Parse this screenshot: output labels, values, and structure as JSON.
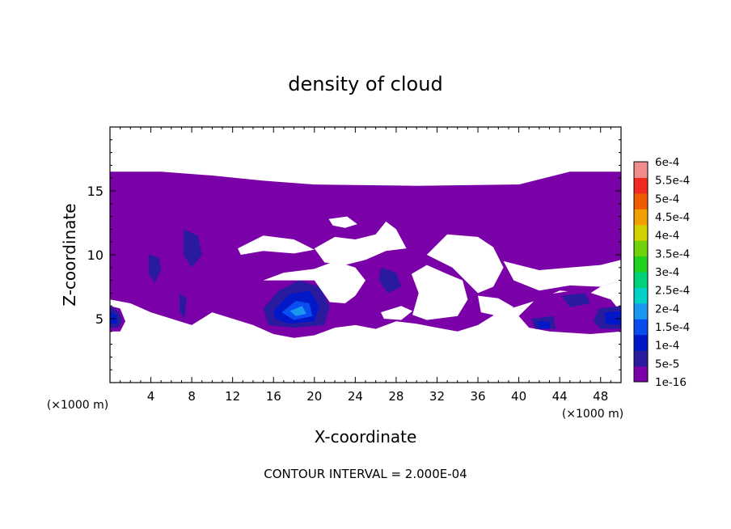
{
  "chart_data": {
    "type": "heatmap",
    "title": "density of cloud",
    "xlabel": "X-coordinate",
    "ylabel": "Z-coordinate",
    "x_unit_left": "(×1000 m)",
    "x_unit_right": "(×1000 m)",
    "xlim": [
      0,
      50
    ],
    "ylim": [
      0,
      20
    ],
    "x_ticks": [
      4,
      8,
      12,
      16,
      20,
      24,
      28,
      32,
      36,
      40,
      44,
      48
    ],
    "y_ticks": [
      5,
      10,
      15
    ],
    "footer": "CONTOUR INTERVAL = 2.000E-04",
    "colorbar": {
      "levels": [
        "1e-16",
        "5e-5",
        "1e-4",
        "1.5e-4",
        "2e-4",
        "2.5e-4",
        "3e-4",
        "3.5e-4",
        "4e-4",
        "4.5e-4",
        "5e-4",
        "5.5e-4",
        "6e-4"
      ],
      "colors": [
        "#7a00a8",
        "#2a1a9e",
        "#0018c8",
        "#0a4cf0",
        "#1898f0",
        "#00d2c8",
        "#00d27a",
        "#1ed21e",
        "#70d20a",
        "#d2d200",
        "#f0a000",
        "#f05a00",
        "#f02a20",
        "#f08c8c"
      ]
    },
    "cloud_base_color": "#7a00a8",
    "regions": [
      {
        "level": 0,
        "points": [
          [
            0,
            16.5
          ],
          [
            5,
            16.5
          ],
          [
            10,
            16.2
          ],
          [
            15,
            15.8
          ],
          [
            20,
            15.5
          ],
          [
            30,
            15.4
          ],
          [
            40,
            15.5
          ],
          [
            45,
            16.5
          ],
          [
            50,
            16.5
          ],
          [
            50,
            8
          ],
          [
            48,
            7.5
          ],
          [
            47,
            7
          ],
          [
            44,
            7.2
          ],
          [
            42,
            6.5
          ],
          [
            40,
            6
          ],
          [
            38,
            5.5
          ],
          [
            36,
            4.5
          ],
          [
            34,
            4
          ],
          [
            32,
            4.3
          ],
          [
            30,
            4.6
          ],
          [
            28,
            4.8
          ],
          [
            26,
            4.2
          ],
          [
            24,
            4.5
          ],
          [
            22,
            4.3
          ],
          [
            20,
            3.7
          ],
          [
            18,
            3.5
          ],
          [
            16,
            3.8
          ],
          [
            14,
            4.5
          ],
          [
            12,
            5
          ],
          [
            10,
            5.5
          ],
          [
            8,
            4.5
          ],
          [
            6,
            5
          ],
          [
            4,
            5.5
          ],
          [
            2,
            6.2
          ],
          [
            0,
            6.5
          ]
        ]
      },
      {
        "level": 0,
        "points": [
          [
            42,
            6.8
          ],
          [
            46,
            7.3
          ],
          [
            49,
            6.5
          ],
          [
            50,
            5.5
          ],
          [
            50,
            4
          ],
          [
            47,
            3.8
          ],
          [
            45,
            3.9
          ],
          [
            43,
            4
          ],
          [
            41,
            4.3
          ],
          [
            40,
            5.2
          ]
        ]
      },
      {
        "level": 0,
        "points": [
          [
            0,
            6
          ],
          [
            1,
            5.8
          ],
          [
            1.5,
            4.8
          ],
          [
            1,
            4
          ],
          [
            0,
            4
          ]
        ]
      },
      {
        "level": 1,
        "points": [
          [
            15,
            5.8
          ],
          [
            16.5,
            7.2
          ],
          [
            18.5,
            8
          ],
          [
            20.5,
            7.5
          ],
          [
            21.5,
            6
          ],
          [
            21,
            4.5
          ],
          [
            18,
            4.3
          ],
          [
            15.5,
            4.5
          ]
        ]
      },
      {
        "level": 2,
        "points": [
          [
            16,
            5.6
          ],
          [
            17.5,
            6.9
          ],
          [
            19.5,
            7.2
          ],
          [
            20.5,
            6
          ],
          [
            20,
            4.8
          ],
          [
            17.5,
            4.6
          ],
          [
            16.2,
            5
          ]
        ]
      },
      {
        "level": 3,
        "points": [
          [
            16.8,
            5.5
          ],
          [
            18.2,
            6.4
          ],
          [
            19.5,
            6.2
          ],
          [
            19.8,
            5.2
          ],
          [
            18,
            4.9
          ]
        ]
      },
      {
        "level": 4,
        "points": [
          [
            17.6,
            5.6
          ],
          [
            18.8,
            6
          ],
          [
            19.2,
            5.4
          ],
          [
            18.2,
            5.2
          ]
        ]
      },
      {
        "level": 1,
        "points": [
          [
            3.8,
            10
          ],
          [
            4.8,
            9.8
          ],
          [
            5,
            8.8
          ],
          [
            4.4,
            7.8
          ],
          [
            3.8,
            8.5
          ]
        ]
      },
      {
        "level": 1,
        "points": [
          [
            7.2,
            12
          ],
          [
            8.6,
            11.5
          ],
          [
            9,
            10
          ],
          [
            8,
            9
          ],
          [
            7.2,
            10
          ]
        ]
      },
      {
        "level": 1,
        "points": [
          [
            26.5,
            9
          ],
          [
            28,
            8.6
          ],
          [
            28.5,
            7.5
          ],
          [
            27.2,
            7
          ],
          [
            26.3,
            8
          ]
        ]
      },
      {
        "level": 1,
        "points": [
          [
            35.8,
            9
          ],
          [
            36.8,
            8.5
          ],
          [
            36.5,
            7.6
          ],
          [
            35.7,
            8
          ]
        ]
      },
      {
        "level": 1,
        "points": [
          [
            44.2,
            6.8
          ],
          [
            46.5,
            7
          ],
          [
            47,
            6.2
          ],
          [
            45,
            5.9
          ]
        ]
      },
      {
        "level": 1,
        "points": [
          [
            41.2,
            5
          ],
          [
            43.4,
            5.2
          ],
          [
            43.6,
            4.2
          ],
          [
            41.6,
            4.2
          ]
        ]
      },
      {
        "level": 2,
        "points": [
          [
            41.8,
            4.8
          ],
          [
            43,
            4.8
          ],
          [
            43,
            4.2
          ],
          [
            42,
            4.2
          ]
        ]
      },
      {
        "level": 1,
        "points": [
          [
            47.8,
            5.8
          ],
          [
            50,
            6
          ],
          [
            50,
            4.2
          ],
          [
            48,
            4.2
          ],
          [
            47.3,
            4.8
          ]
        ]
      },
      {
        "level": 2,
        "points": [
          [
            48.4,
            5.5
          ],
          [
            50,
            5.6
          ],
          [
            50,
            4.5
          ],
          [
            48.5,
            4.6
          ]
        ]
      },
      {
        "level": 1,
        "points": [
          [
            0,
            6
          ],
          [
            0.9,
            5.5
          ],
          [
            1.2,
            4.8
          ],
          [
            0.8,
            4.3
          ],
          [
            0,
            4.3
          ]
        ]
      },
      {
        "level": 2,
        "points": [
          [
            0,
            5.6
          ],
          [
            0.7,
            5.2
          ],
          [
            0.7,
            4.6
          ],
          [
            0,
            4.6
          ]
        ]
      },
      {
        "level": 1,
        "points": [
          [
            6.8,
            7
          ],
          [
            7.5,
            6.6
          ],
          [
            7.3,
            5
          ],
          [
            6.8,
            5.6
          ]
        ]
      }
    ],
    "holes": [
      {
        "points": [
          [
            12.5,
            10.5
          ],
          [
            15,
            11.5
          ],
          [
            18,
            11.2
          ],
          [
            20,
            10.4
          ],
          [
            18,
            10.1
          ],
          [
            15,
            10.3
          ],
          [
            12.8,
            10
          ]
        ]
      },
      {
        "points": [
          [
            20,
            10.5
          ],
          [
            22,
            11.4
          ],
          [
            24,
            11.2
          ],
          [
            26,
            11.6
          ],
          [
            27,
            12.6
          ],
          [
            28,
            12
          ],
          [
            29,
            10.5
          ],
          [
            27,
            10.3
          ],
          [
            25,
            9.6
          ],
          [
            23,
            9.2
          ],
          [
            21,
            9.4
          ]
        ]
      },
      {
        "points": [
          [
            15,
            8
          ],
          [
            17,
            8.6
          ],
          [
            20,
            8.9
          ],
          [
            22,
            9.5
          ],
          [
            24,
            9
          ],
          [
            25,
            8
          ],
          [
            24,
            6.8
          ],
          [
            23,
            6.2
          ],
          [
            21.5,
            6.3
          ],
          [
            20,
            8
          ]
        ]
      },
      {
        "points": [
          [
            31,
            10
          ],
          [
            33,
            11.6
          ],
          [
            36,
            11.4
          ],
          [
            37.5,
            10.6
          ],
          [
            38.5,
            9
          ],
          [
            37.5,
            7.5
          ],
          [
            36,
            7
          ],
          [
            35,
            7.8
          ],
          [
            33.5,
            9
          ]
        ]
      },
      {
        "points": [
          [
            38.5,
            9.5
          ],
          [
            40,
            9.2
          ],
          [
            42,
            8.8
          ],
          [
            45,
            9
          ],
          [
            48,
            9.2
          ],
          [
            50,
            9.6
          ],
          [
            50,
            8
          ],
          [
            48,
            7.5
          ],
          [
            45,
            7.6
          ],
          [
            42,
            7.2
          ],
          [
            39.5,
            8
          ]
        ]
      },
      {
        "points": [
          [
            29.5,
            8.5
          ],
          [
            31,
            9.2
          ],
          [
            33,
            8.5
          ],
          [
            34.5,
            8
          ],
          [
            35,
            6.5
          ],
          [
            34,
            5.2
          ],
          [
            31,
            4.9
          ],
          [
            29.6,
            5.3
          ],
          [
            30.2,
            7
          ]
        ]
      },
      {
        "points": [
          [
            36,
            6.8
          ],
          [
            38,
            6.6
          ],
          [
            39.5,
            5.9
          ],
          [
            38,
            5.2
          ],
          [
            36.3,
            5.5
          ]
        ]
      },
      {
        "points": [
          [
            21.4,
            12.8
          ],
          [
            23.2,
            13
          ],
          [
            24.2,
            12.4
          ],
          [
            23,
            12.1
          ],
          [
            21.8,
            12.3
          ]
        ]
      },
      {
        "points": [
          [
            26.5,
            5.5
          ],
          [
            28.5,
            6
          ],
          [
            29.6,
            5.6
          ],
          [
            28.5,
            4.9
          ],
          [
            26.8,
            5
          ]
        ]
      }
    ]
  }
}
